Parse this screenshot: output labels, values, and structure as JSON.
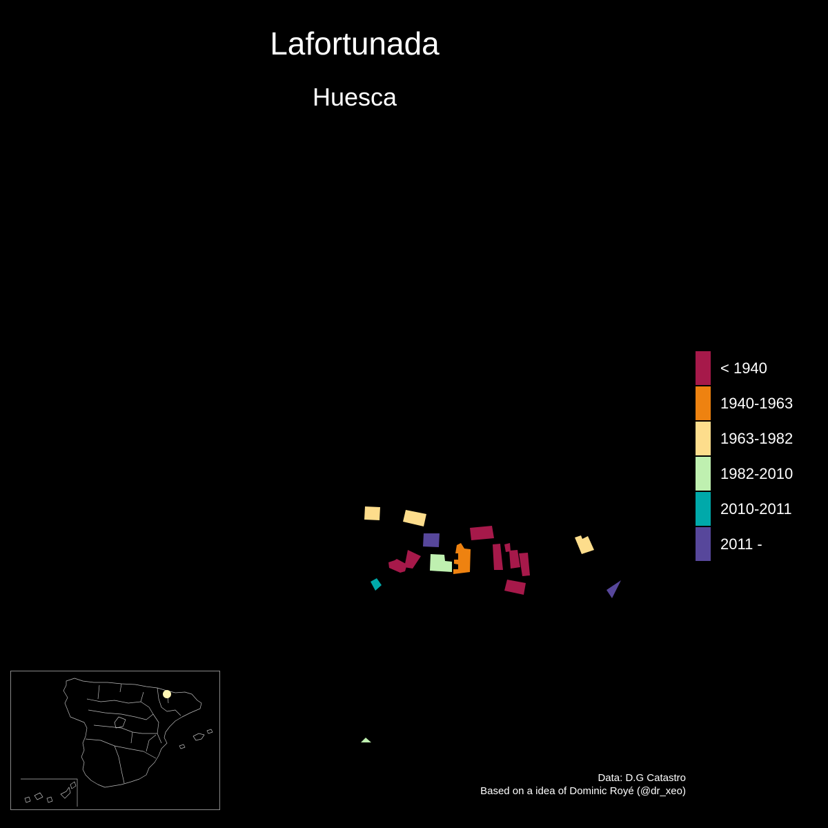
{
  "header": {
    "title": "Lafortunada",
    "subtitle": "Huesca"
  },
  "legend": {
    "items": [
      {
        "label": "< 1940",
        "color": "#A6194A"
      },
      {
        "label": "1940-1963",
        "color": "#EE8210"
      },
      {
        "label": "1963-1982",
        "color": "#FDDD8C"
      },
      {
        "label": "1982-2010",
        "color": "#BFF0B0"
      },
      {
        "label": "2010-2011",
        "color": "#00A9AA"
      },
      {
        "label": "2011 -",
        "color": "#57479B"
      }
    ]
  },
  "inset": {
    "locator_color": "#FFF6B4"
  },
  "credits": {
    "line1": "Data: D.G Catastro",
    "line2": "Based on a idea of Dominic Royé (@dr_xeo)"
  }
}
